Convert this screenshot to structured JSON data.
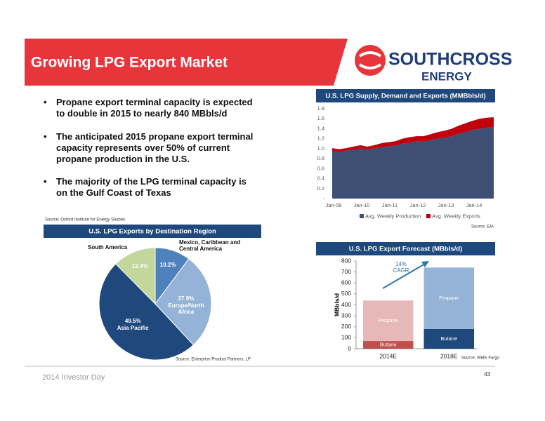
{
  "header": {
    "title": "Growing LPG Export Market",
    "logo_top": "SOUTHCROSS",
    "logo_bottom": "ENERGY"
  },
  "bullets": [
    "Propane export terminal capacity is expected to double in 2015 to nearly 840 MBbls/d",
    "The anticipated 2015 propane export terminal capacity represents over 50% of current propane production in the U.S.",
    "The majority of the LPG terminal capacity is on the Gulf Coast of Texas"
  ],
  "source_note": "Source: Oxford Institute for Energy Studies",
  "footer": {
    "left": "2014 Investor Day",
    "page": "43"
  },
  "chart_data": [
    {
      "type": "area",
      "title": "U.S. LPG Supply, Demand and Exports (MMBbls/d)",
      "x": [
        "Jan-09",
        "Apr-09",
        "Jul-09",
        "Oct-09",
        "Jan-10",
        "Apr-10",
        "Jul-10",
        "Oct-10",
        "Jan-11",
        "Apr-11",
        "Jul-11",
        "Oct-11",
        "Jan-12",
        "Apr-12",
        "Jul-12",
        "Oct-12",
        "Jan-13",
        "Apr-13",
        "Jul-13",
        "Oct-13",
        "Jan-14",
        "Apr-14",
        "Jul-14",
        "Oct-14"
      ],
      "xticks": [
        "Jan-09",
        "Jan-10",
        "Jan-11",
        "Jan-12",
        "Jan-13",
        "Jan-14"
      ],
      "series": [
        {
          "name": "Avg. Weekly Production",
          "color": "#3d4f73",
          "values": [
            0.95,
            0.93,
            0.96,
            0.98,
            1.0,
            0.98,
            1.0,
            1.03,
            1.05,
            1.06,
            1.1,
            1.12,
            1.15,
            1.14,
            1.17,
            1.2,
            1.22,
            1.25,
            1.3,
            1.33,
            1.38,
            1.4,
            1.42,
            1.43
          ]
        },
        {
          "name": "Avg. Weekly Exports",
          "color": "#c0000c",
          "values": [
            0.06,
            0.06,
            0.05,
            0.06,
            0.07,
            0.06,
            0.07,
            0.08,
            0.08,
            0.09,
            0.1,
            0.11,
            0.1,
            0.11,
            0.12,
            0.13,
            0.14,
            0.15,
            0.16,
            0.18,
            0.18,
            0.2,
            0.2,
            0.2
          ]
        }
      ],
      "stacked": true,
      "ylim": [
        0,
        1.8
      ],
      "yticks": [
        {
          "value": 0,
          "label": "-"
        },
        0.2,
        0.4,
        0.6,
        0.8,
        {
          "value": 1,
          "label": "1.0"
        },
        1.2,
        1.4,
        1.6,
        1.8
      ],
      "source": "Source: EIA"
    },
    {
      "type": "pie",
      "title": "U.S. LPG Exports by Destination Region",
      "categories": [
        "Mexico, Caribbean and Central America",
        "Europe/North Africa",
        "Asia Pacific",
        "South America"
      ],
      "values": [
        10.2,
        27.9,
        49.5,
        12.4
      ],
      "value_labels": [
        "10.2%",
        "27.9%",
        "49.5%",
        "12.4%"
      ],
      "colors": [
        "#4f81bd",
        "#95b3d7",
        "#1f497d",
        "#c3d69b"
      ],
      "source": "Source: Enterprise Product Partners, LP"
    },
    {
      "type": "stacked_bar",
      "title": "U.S. LPG Export Forecast (MBbls/d)",
      "categories": [
        "2014E",
        "2018E"
      ],
      "series": [
        {
          "name": "Butane",
          "colors": [
            "#c0504d",
            "#1f497d"
          ],
          "values": [
            70,
            180
          ]
        },
        {
          "name": "Propane",
          "colors": [
            "#e6b8b7",
            "#95b3d7"
          ],
          "values": [
            370,
            560
          ]
        }
      ],
      "ylabel": "MBbls/d",
      "ylim": [
        0,
        800
      ],
      "yticks": [
        0,
        100,
        200,
        300,
        400,
        500,
        600,
        700,
        800
      ],
      "annotations": [
        "14%",
        "CAGR"
      ],
      "source": "Source: Wells Fargo"
    }
  ]
}
